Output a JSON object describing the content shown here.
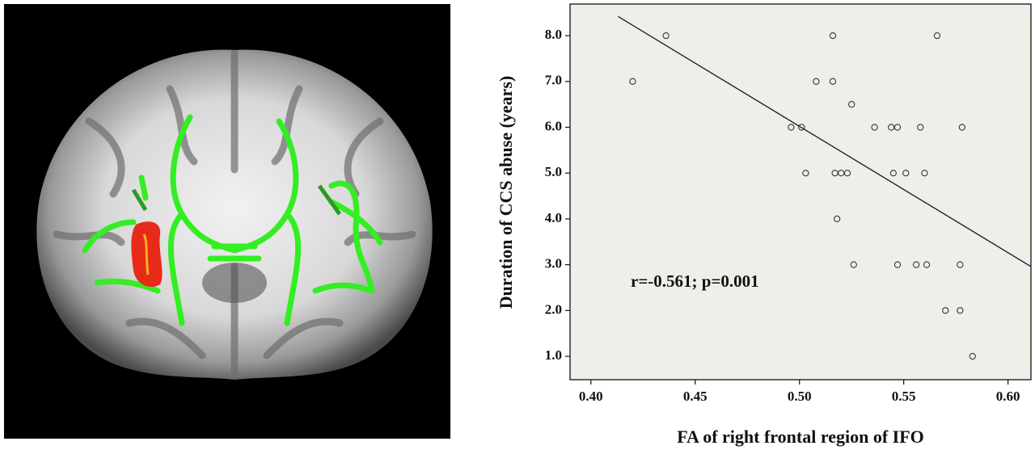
{
  "chart_data": {
    "type": "scatter",
    "x_label": "FA of right frontal region of IFO",
    "y_label": "Duration of CCS abuse (years)",
    "annotation": "r=-0.561; p=0.001",
    "x": [
      0.436,
      0.42,
      0.516,
      0.566,
      0.508,
      0.516,
      0.496,
      0.501,
      0.525,
      0.536,
      0.544,
      0.547,
      0.558,
      0.578,
      0.503,
      0.517,
      0.52,
      0.523,
      0.545,
      0.551,
      0.56,
      0.518,
      0.526,
      0.547,
      0.556,
      0.561,
      0.577,
      0.57,
      0.577,
      0.583
    ],
    "values": [
      8,
      7,
      8,
      8,
      7,
      7,
      6,
      6,
      6.5,
      6,
      6,
      6,
      6,
      6,
      5,
      5,
      5,
      5,
      5,
      5,
      5,
      4,
      3,
      3,
      3,
      3,
      3,
      2,
      2,
      1
    ],
    "color": "#333333",
    "fit_line": {
      "x": [
        0.413,
        0.611
      ],
      "values": [
        8.42,
        2.96
      ],
      "color": "#222222"
    },
    "xlim": [
      0.39,
      0.611
    ],
    "ylim": [
      0.49,
      8.69
    ],
    "xticks": [
      {
        "value": 0.4,
        "label": "0.40"
      },
      {
        "value": 0.45,
        "label": "0.45"
      },
      {
        "value": 0.5,
        "label": "0.50"
      },
      {
        "value": 0.55,
        "label": "0.55"
      },
      {
        "value": 0.6,
        "label": "0.60"
      }
    ],
    "yticks": [
      {
        "value": 1,
        "label": "1.0"
      },
      {
        "value": 2,
        "label": "2.0"
      },
      {
        "value": 3,
        "label": "3.0"
      },
      {
        "value": 4,
        "label": "4.0"
      },
      {
        "value": 5,
        "label": "5.0"
      },
      {
        "value": 6,
        "label": "6.0"
      },
      {
        "value": 7,
        "label": "7.0"
      },
      {
        "value": 8,
        "label": "8.0"
      }
    ],
    "plot_background": "#efefea"
  }
}
